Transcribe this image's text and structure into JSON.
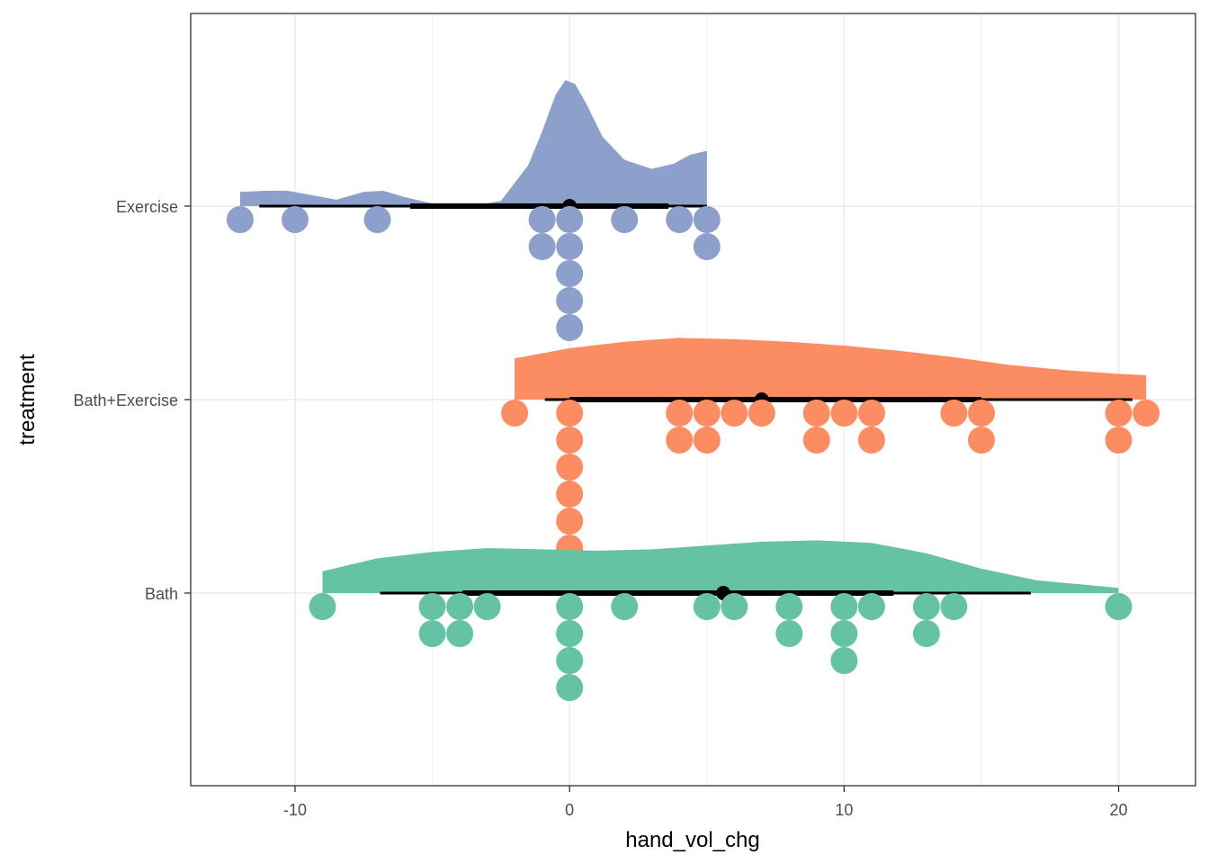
{
  "chart_data": {
    "type": "raincloud",
    "orientation": "horizontal",
    "xlabel": "hand_vol_chg",
    "ylabel": "treatment",
    "xlim": [
      -13.8,
      22.8
    ],
    "x_ticks": [
      -10,
      0,
      10,
      20
    ],
    "x_tick_labels": [
      "-10",
      "0",
      "10",
      "20"
    ],
    "grid": true,
    "legend": "none",
    "categories": [
      "Bath",
      "Bath+Exercise",
      "Exercise"
    ],
    "series": [
      {
        "name": "Exercise",
        "color": "#8DA0CB",
        "points": [
          -12,
          -10,
          -7,
          -1,
          -1,
          0,
          0,
          0,
          0,
          0,
          2,
          4,
          5,
          5
        ],
        "summary": {
          "point": 0,
          "inner": [
            -5.8,
            3.6
          ],
          "outer": [
            -11.3,
            5
          ]
        },
        "density": [
          [
            -12,
            0.11
          ],
          [
            -11,
            0.12
          ],
          [
            -10.3,
            0.12
          ],
          [
            -9.5,
            0.09
          ],
          [
            -8.5,
            0.05
          ],
          [
            -7.5,
            0.11
          ],
          [
            -6.8,
            0.12
          ],
          [
            -6,
            0.07
          ],
          [
            -5,
            0.02
          ],
          [
            -3.5,
            0.005
          ],
          [
            -2.5,
            0.04
          ],
          [
            -1.5,
            0.32
          ],
          [
            -1,
            0.58
          ],
          [
            -0.5,
            0.87
          ],
          [
            -0.15,
            0.98
          ],
          [
            0.2,
            0.95
          ],
          [
            0.6,
            0.8
          ],
          [
            1.2,
            0.54
          ],
          [
            2,
            0.36
          ],
          [
            3,
            0.29
          ],
          [
            3.8,
            0.33
          ],
          [
            4.4,
            0.4
          ],
          [
            5,
            0.43
          ]
        ]
      },
      {
        "name": "Bath+Exercise",
        "color": "#FC8D62",
        "points": [
          -2,
          0,
          0,
          0,
          0,
          0,
          0,
          4,
          4,
          5,
          5,
          6,
          7,
          9,
          9,
          10,
          11,
          11,
          14,
          15,
          15,
          20,
          20,
          21
        ],
        "summary": {
          "point": 7,
          "inner": [
            0,
            15
          ],
          "outer": [
            -0.9,
            20.5
          ]
        },
        "density": [
          [
            -2,
            0.32
          ],
          [
            0,
            0.4
          ],
          [
            2,
            0.45
          ],
          [
            4,
            0.48
          ],
          [
            6,
            0.47
          ],
          [
            8,
            0.45
          ],
          [
            10,
            0.42
          ],
          [
            12,
            0.38
          ],
          [
            14,
            0.33
          ],
          [
            16,
            0.27
          ],
          [
            18,
            0.23
          ],
          [
            20,
            0.2
          ],
          [
            21,
            0.19
          ]
        ]
      },
      {
        "name": "Bath",
        "color": "#66C2A5",
        "points": [
          -9,
          -5,
          -5,
          -4,
          -4,
          -3,
          0,
          0,
          0,
          0,
          2,
          5,
          6,
          8,
          8,
          10,
          10,
          10,
          11,
          13,
          13,
          14,
          20
        ],
        "summary": {
          "point": 5.6,
          "inner": [
            -3.9,
            11.8
          ],
          "outer": [
            -6.9,
            16.8
          ]
        },
        "density": [
          [
            -9,
            0.17
          ],
          [
            -7,
            0.27
          ],
          [
            -5,
            0.32
          ],
          [
            -3,
            0.35
          ],
          [
            -1,
            0.34
          ],
          [
            1,
            0.33
          ],
          [
            3,
            0.34
          ],
          [
            5,
            0.37
          ],
          [
            7,
            0.4
          ],
          [
            9,
            0.41
          ],
          [
            11,
            0.39
          ],
          [
            13,
            0.31
          ],
          [
            15,
            0.19
          ],
          [
            17,
            0.1
          ],
          [
            19,
            0.06
          ],
          [
            20,
            0.04
          ]
        ]
      }
    ]
  }
}
